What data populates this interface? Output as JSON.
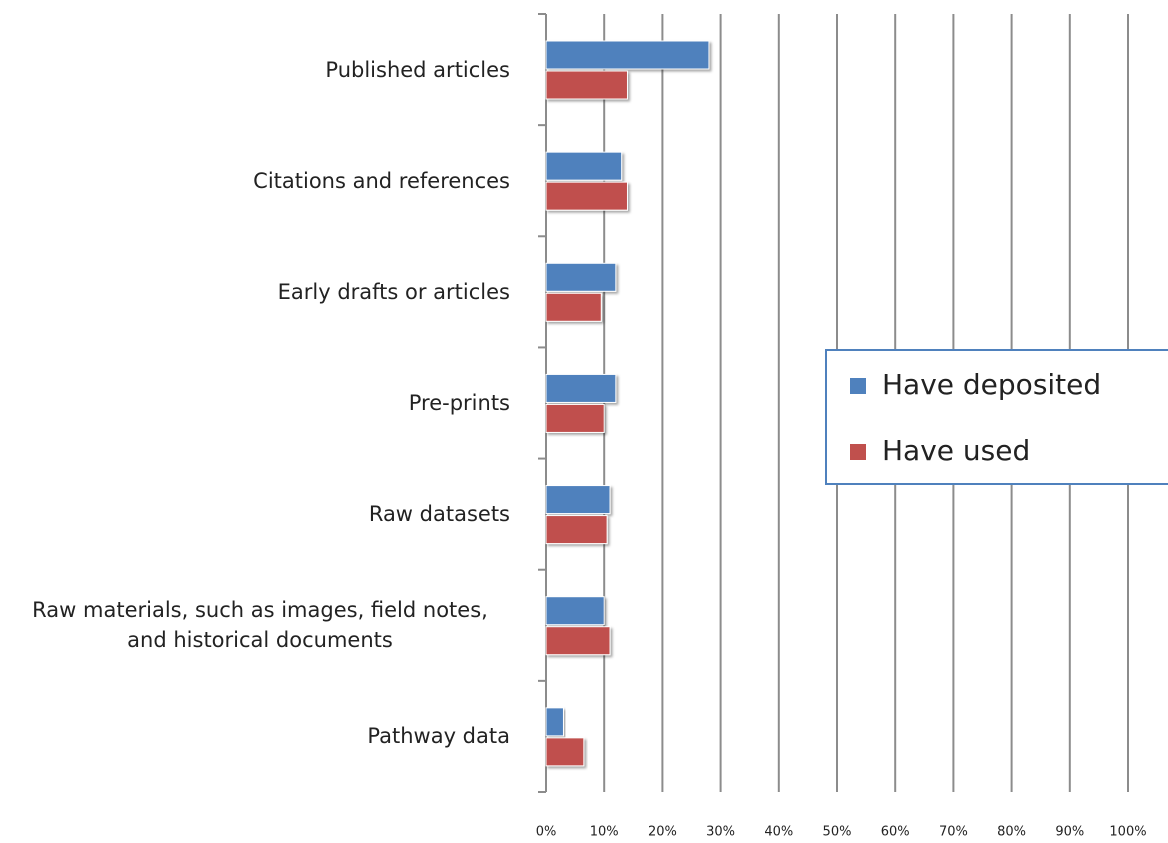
{
  "chart_data": {
    "type": "hbar",
    "categories": [
      "Published articles",
      "Citations and references",
      "Early drafts or articles",
      "Pre-prints",
      "Raw datasets",
      "Raw materials, such as images, field notes, and historical documents",
      "Pathway data"
    ],
    "series": [
      {
        "name": "Have deposited",
        "color": "#4f81bd",
        "values": [
          28,
          13,
          12,
          12,
          11,
          10,
          3
        ]
      },
      {
        "name": "Have used",
        "color": "#c0504d",
        "values": [
          14,
          14,
          9.5,
          10,
          10.5,
          11,
          6.5
        ]
      }
    ],
    "xlim": [
      0,
      100
    ],
    "xticks": [
      {
        "value": 0,
        "label": "0%"
      },
      {
        "value": 10,
        "label": "10%"
      },
      {
        "value": 20,
        "label": "20%"
      },
      {
        "value": 30,
        "label": "30%"
      },
      {
        "value": 40,
        "label": "40%"
      },
      {
        "value": 50,
        "label": "50%"
      },
      {
        "value": 60,
        "label": "60%"
      },
      {
        "value": 70,
        "label": "70%"
      },
      {
        "value": 80,
        "label": "80%"
      },
      {
        "value": 90,
        "label": "90%"
      },
      {
        "value": 100,
        "label": "100%"
      }
    ],
    "grid": true,
    "legend": "right"
  }
}
